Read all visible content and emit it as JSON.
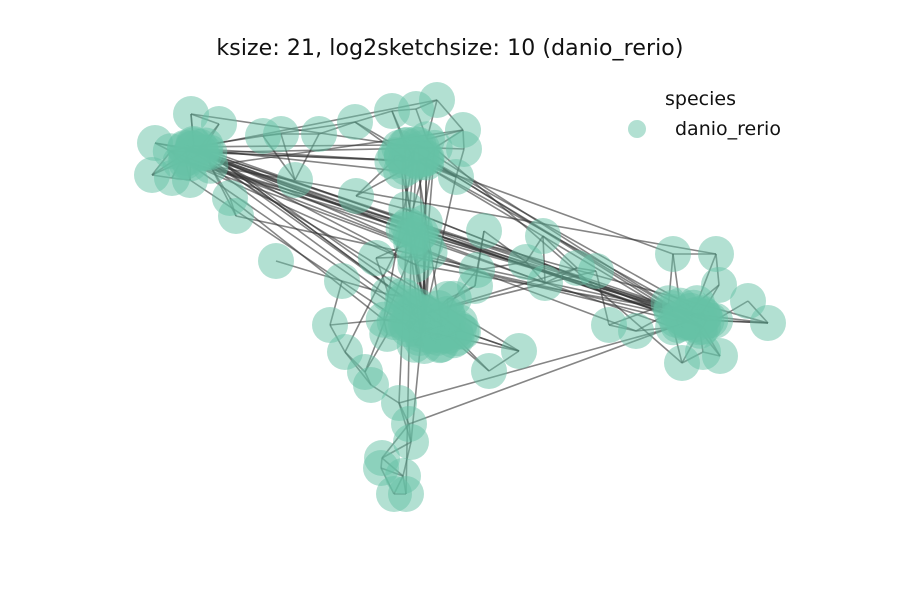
{
  "figure": {
    "title": "ksize: 21, log2sketchsize: 10 (danio_rerio)"
  },
  "legend": {
    "title": "species",
    "items": [
      {
        "label": "danio_rerio",
        "color": "#66c2a5"
      }
    ]
  },
  "style": {
    "node_color": "#66c2a5",
    "node_alpha": 0.5,
    "edge_color": "#333333"
  }
}
